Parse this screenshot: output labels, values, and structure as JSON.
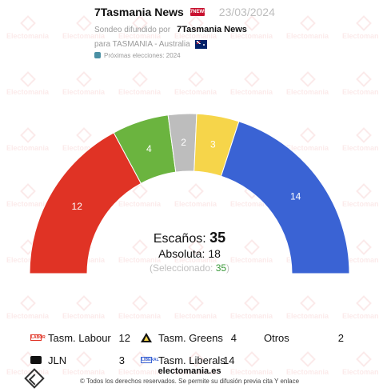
{
  "header": {
    "title": "7Tasmania News",
    "logo_text": "7NEWS",
    "date": "23/03/2024",
    "sondeo_prefix": "Sondeo difundido por",
    "pollster": "7Tasmania News",
    "region": "para TASMANIA - Australia",
    "next_elections": "Próximas elecciones: 2024"
  },
  "summary": {
    "seats_label": "Escaños:",
    "seats_value": "35",
    "absolute_label": "Absoluta:",
    "absolute_value": "18",
    "selected_label": "(Seleccionado:",
    "selected_value": "35",
    "selected_close": ")"
  },
  "chart_data": {
    "type": "pie",
    "subtype": "parliament-hemicycle",
    "total_seats": 35,
    "majority": 18,
    "series": [
      {
        "name": "Tasm. Labour",
        "value": 12,
        "color": "#e03325"
      },
      {
        "name": "Tasm. Greens",
        "value": 4,
        "color": "#6bb43f"
      },
      {
        "name": "Otros",
        "value": 2,
        "color": "#bdbdbd"
      },
      {
        "name": "JLN",
        "value": 3,
        "color": "#f6d54a"
      },
      {
        "name": "Tasm. Liberals",
        "value": 14,
        "color": "#3a63d4"
      }
    ]
  },
  "legend": [
    {
      "name": "Tasm. Labour",
      "value": "12",
      "icon": "labour-logo-icon"
    },
    {
      "name": "Tasm. Greens",
      "value": "4",
      "icon": "greens-logo-icon"
    },
    {
      "name": "Otros",
      "value": "2",
      "icon": ""
    },
    {
      "name": "JLN",
      "value": "3",
      "icon": "jln-logo-icon"
    },
    {
      "name": "Tasm. Liberals",
      "value": "14",
      "icon": "liberals-logo-icon"
    }
  ],
  "party_logos": {
    "labour": "LABOR",
    "liberals": "LIBERAL"
  },
  "footer": {
    "site": "electomania.es",
    "rights": "© Todos los derechos reservados. Se permite su difusión previa cita Y enlace"
  },
  "watermark_text": "Electomania"
}
